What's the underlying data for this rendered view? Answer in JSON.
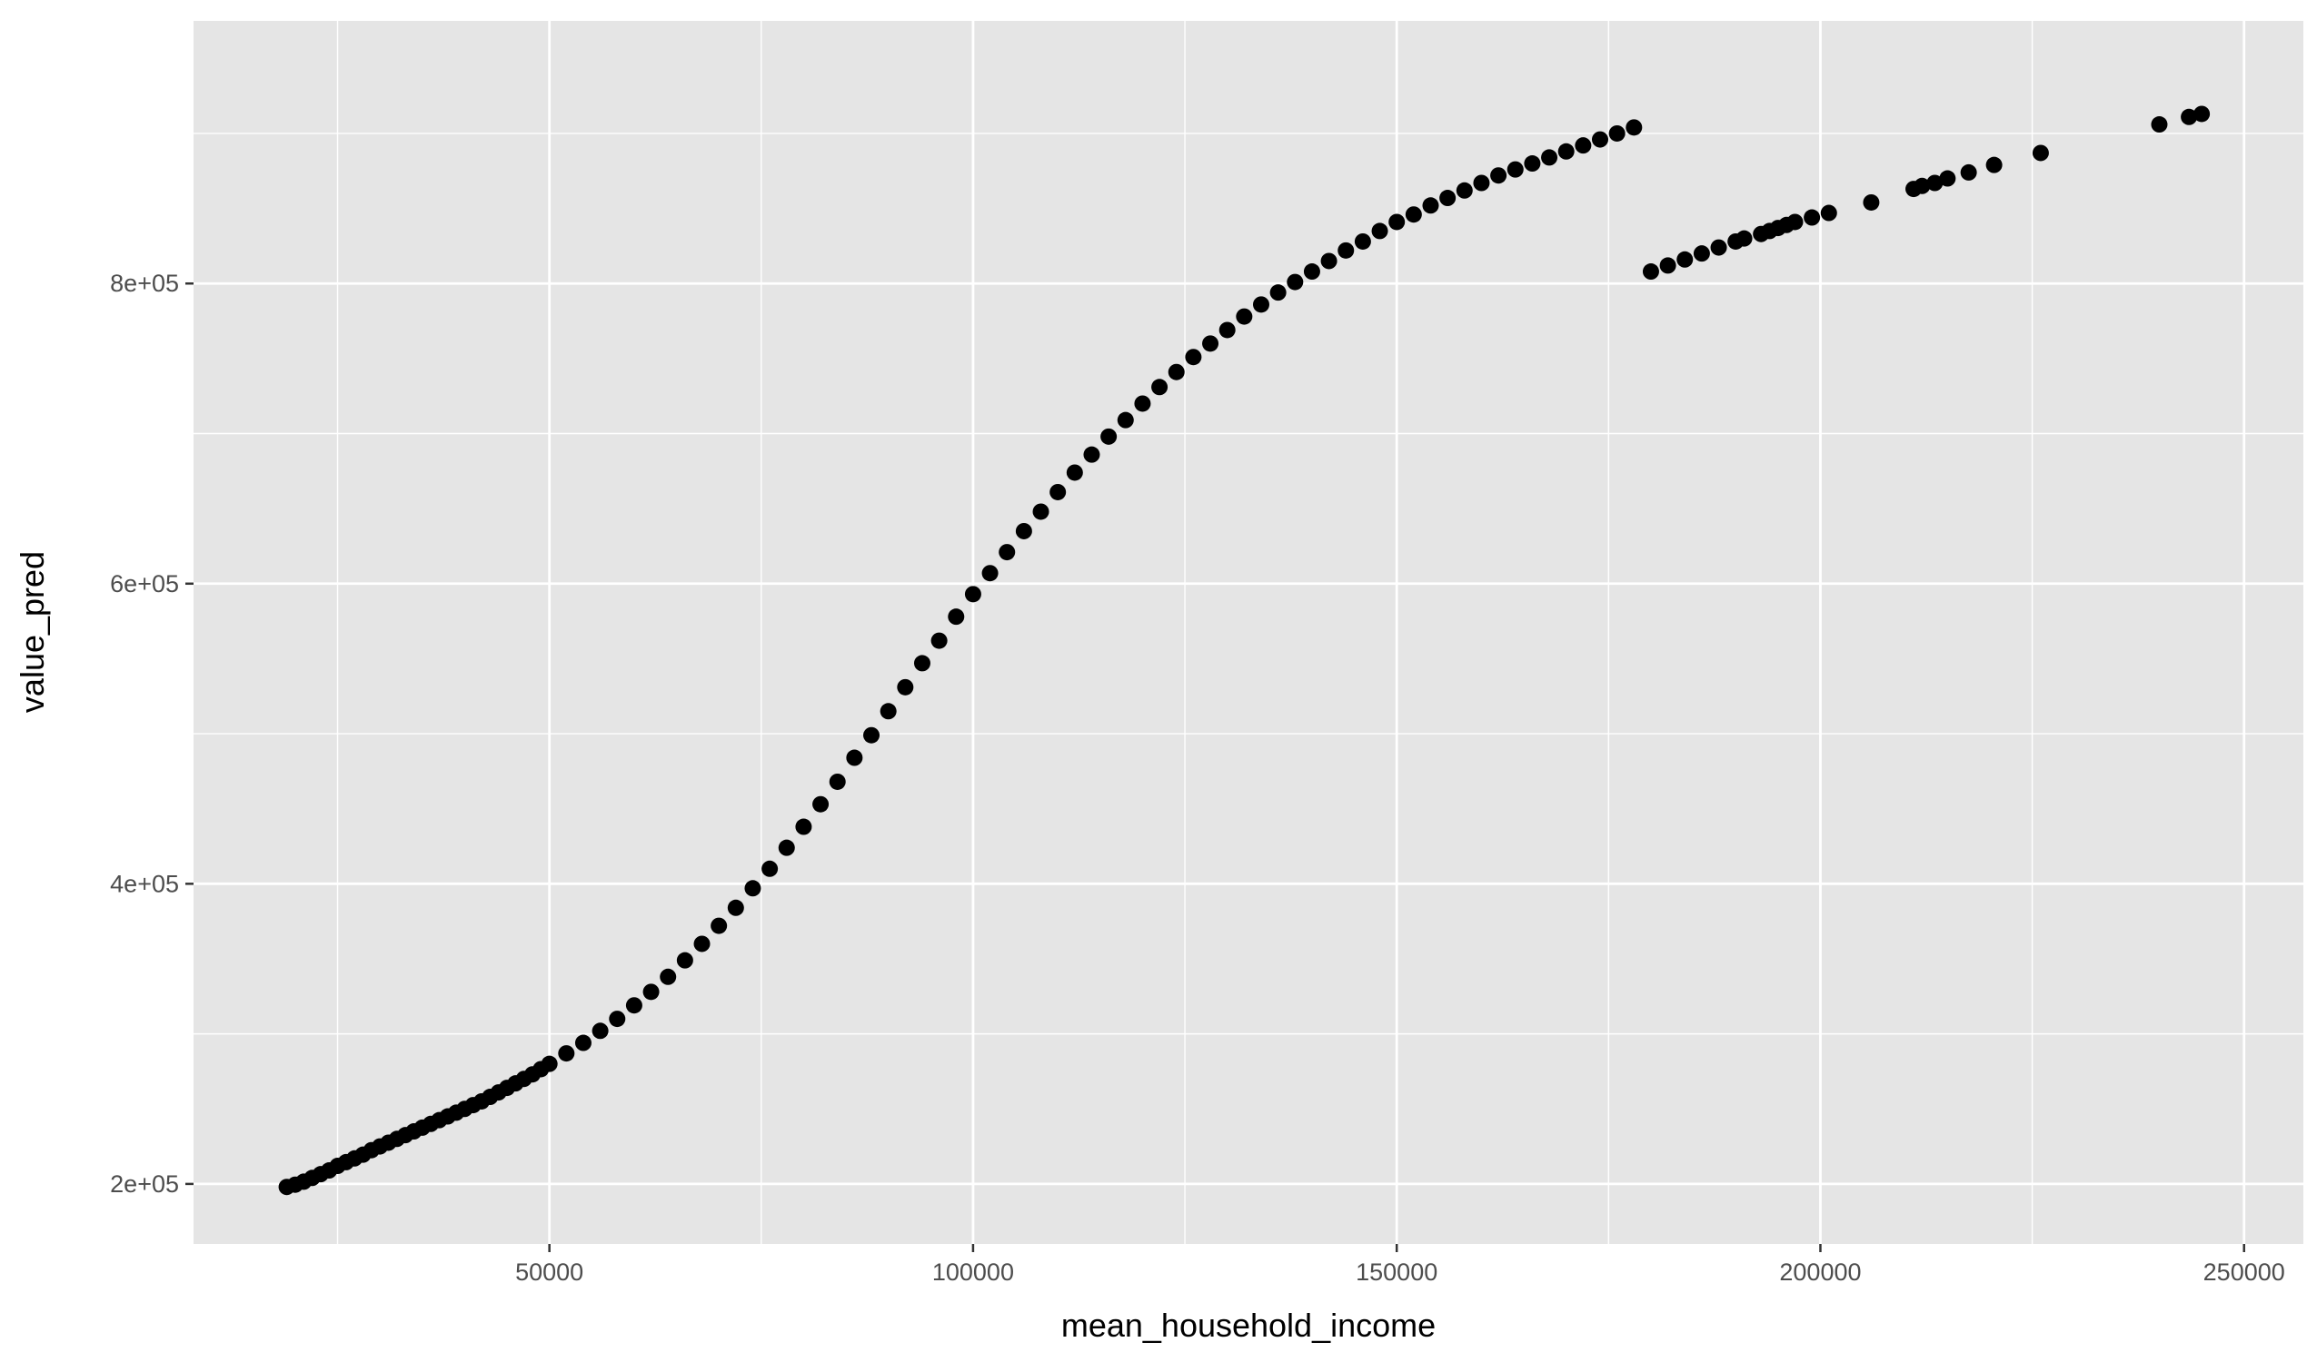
{
  "chart_data": {
    "type": "scatter",
    "xlabel": "mean_household_income",
    "ylabel": "value_pred",
    "xlim": [
      8000,
      257000
    ],
    "ylim": [
      160000,
      975000
    ],
    "x_ticks": [
      50000,
      100000,
      150000,
      200000,
      250000
    ],
    "x_tick_labels": [
      "50000",
      "100000",
      "150000",
      "200000",
      "250000"
    ],
    "y_ticks": [
      200000,
      400000,
      600000,
      800000
    ],
    "y_tick_labels": [
      "2e+05",
      "4e+05",
      "6e+05",
      "8e+05"
    ],
    "grid": true,
    "point_color": "#000000",
    "panel_color": "#e5e5e5",
    "grid_color": "#ffffff",
    "points": [
      [
        19000,
        198000
      ],
      [
        20000,
        199500
      ],
      [
        21000,
        201500
      ],
      [
        22000,
        204000
      ],
      [
        23000,
        206500
      ],
      [
        24000,
        209000
      ],
      [
        25000,
        212000
      ],
      [
        26000,
        214500
      ],
      [
        27000,
        217000
      ],
      [
        28000,
        219500
      ],
      [
        29000,
        222500
      ],
      [
        30000,
        225000
      ],
      [
        31000,
        227500
      ],
      [
        32000,
        230000
      ],
      [
        33000,
        232500
      ],
      [
        34000,
        235000
      ],
      [
        35000,
        237500
      ],
      [
        36000,
        240000
      ],
      [
        37000,
        242500
      ],
      [
        38000,
        245000
      ],
      [
        39000,
        247500
      ],
      [
        40000,
        250000
      ],
      [
        41000,
        252500
      ],
      [
        42000,
        255000
      ],
      [
        43000,
        258000
      ],
      [
        44000,
        261000
      ],
      [
        45000,
        264000
      ],
      [
        46000,
        267000
      ],
      [
        47000,
        270000
      ],
      [
        48000,
        273000
      ],
      [
        49000,
        276500
      ],
      [
        50000,
        280000
      ],
      [
        52000,
        287000
      ],
      [
        54000,
        294000
      ],
      [
        56000,
        302000
      ],
      [
        58000,
        310000
      ],
      [
        60000,
        319000
      ],
      [
        62000,
        328000
      ],
      [
        64000,
        338000
      ],
      [
        66000,
        349000
      ],
      [
        68000,
        360000
      ],
      [
        70000,
        372000
      ],
      [
        72000,
        384000
      ],
      [
        74000,
        397000
      ],
      [
        76000,
        410000
      ],
      [
        78000,
        424000
      ],
      [
        80000,
        438000
      ],
      [
        82000,
        453000
      ],
      [
        84000,
        468000
      ],
      [
        86000,
        484000
      ],
      [
        88000,
        499000
      ],
      [
        90000,
        515000
      ],
      [
        92000,
        531000
      ],
      [
        94000,
        547000
      ],
      [
        96000,
        562000
      ],
      [
        98000,
        578000
      ],
      [
        100000,
        593000
      ],
      [
        102000,
        607000
      ],
      [
        104000,
        621000
      ],
      [
        106000,
        635000
      ],
      [
        108000,
        648000
      ],
      [
        110000,
        661000
      ],
      [
        112000,
        674000
      ],
      [
        114000,
        686000
      ],
      [
        116000,
        698000
      ],
      [
        118000,
        709000
      ],
      [
        120000,
        720000
      ],
      [
        122000,
        731000
      ],
      [
        124000,
        741000
      ],
      [
        126000,
        751000
      ],
      [
        128000,
        760000
      ],
      [
        130000,
        769000
      ],
      [
        132000,
        778000
      ],
      [
        134000,
        786000
      ],
      [
        136000,
        794000
      ],
      [
        138000,
        801000
      ],
      [
        140000,
        808000
      ],
      [
        142000,
        815000
      ],
      [
        144000,
        822000
      ],
      [
        146000,
        828000
      ],
      [
        148000,
        835000
      ],
      [
        150000,
        841000
      ],
      [
        152000,
        846000
      ],
      [
        154000,
        852000
      ],
      [
        156000,
        857000
      ],
      [
        158000,
        862000
      ],
      [
        160000,
        867000
      ],
      [
        162000,
        872000
      ],
      [
        164000,
        876000
      ],
      [
        166000,
        880000
      ],
      [
        168000,
        884000
      ],
      [
        170000,
        888000
      ],
      [
        172000,
        892000
      ],
      [
        174000,
        896000
      ],
      [
        176000,
        900000
      ],
      [
        178000,
        904000
      ],
      [
        180000,
        808000
      ],
      [
        182000,
        812000
      ],
      [
        184000,
        816000
      ],
      [
        186000,
        820000
      ],
      [
        188000,
        824000
      ],
      [
        190000,
        828000
      ],
      [
        191000,
        830000
      ],
      [
        193000,
        833000
      ],
      [
        194000,
        835000
      ],
      [
        195000,
        837000
      ],
      [
        196000,
        839000
      ],
      [
        197000,
        841000
      ],
      [
        199000,
        844000
      ],
      [
        201000,
        847000
      ],
      [
        206000,
        854000
      ],
      [
        211000,
        863000
      ],
      [
        212000,
        865000
      ],
      [
        213500,
        867000
      ],
      [
        215000,
        870000
      ],
      [
        217500,
        874000
      ],
      [
        220500,
        879000
      ],
      [
        226000,
        887000
      ],
      [
        240000,
        906000
      ],
      [
        243500,
        911000
      ],
      [
        245000,
        913000
      ]
    ]
  }
}
